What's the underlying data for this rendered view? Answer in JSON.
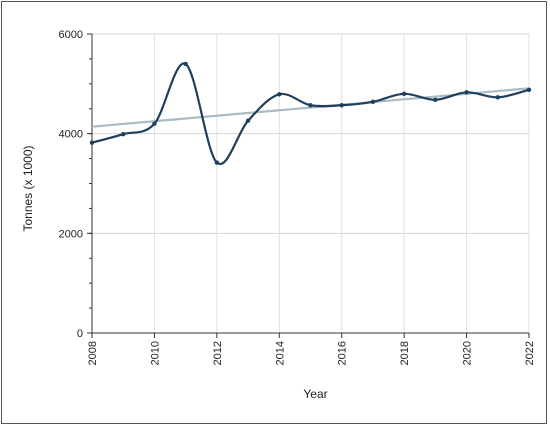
{
  "chart_data": {
    "type": "line",
    "xlabel": "Year",
    "ylabel": "Tonnes (x 1000)",
    "xlim": [
      2008,
      2022
    ],
    "ylim": [
      0,
      6000
    ],
    "x_ticks": [
      "2008",
      "2010",
      "2012",
      "2014",
      "2016",
      "2018",
      "2020",
      "2022"
    ],
    "y_ticks": [
      "0",
      "2000",
      "4000",
      "6000"
    ],
    "grid": "horizontal gridlines at labeled y ticks",
    "series": [
      {
        "x": [
          2008,
          2009,
          2010,
          2011,
          2012,
          2013,
          2014,
          2015,
          2016,
          2017,
          2018,
          2019,
          2020,
          2021,
          2022
        ],
        "y": [
          3820,
          3990,
          4200,
          5400,
          3420,
          4260,
          4790,
          4570,
          4570,
          4640,
          4800,
          4680,
          4830,
          4730,
          4880
        ],
        "color": "#1f3f5f"
      }
    ],
    "trendline": {
      "x": [
        2008,
        2022
      ],
      "y": [
        4140,
        4910
      ],
      "color": "#a9bcc4"
    }
  }
}
